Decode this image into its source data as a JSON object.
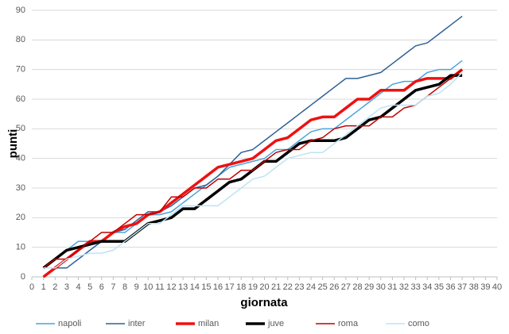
{
  "chart_data": {
    "type": "line",
    "x_label": "giornata",
    "y_label": "punti",
    "x": [
      1,
      2,
      3,
      4,
      5,
      6,
      7,
      8,
      9,
      10,
      11,
      12,
      13,
      14,
      15,
      16,
      17,
      18,
      19,
      20,
      21,
      22,
      23,
      24,
      25,
      26,
      27,
      28,
      29,
      30,
      31,
      32,
      33,
      34,
      35,
      36,
      37
    ],
    "xlim": [
      0,
      40
    ],
    "xticks": [
      0,
      1,
      2,
      3,
      4,
      5,
      6,
      7,
      8,
      9,
      10,
      11,
      12,
      13,
      14,
      15,
      16,
      17,
      18,
      19,
      20,
      21,
      22,
      23,
      24,
      25,
      26,
      27,
      28,
      29,
      30,
      31,
      32,
      33,
      34,
      35,
      36,
      37,
      38,
      39,
      40
    ],
    "ylim": [
      0,
      90
    ],
    "yticks": [
      0,
      10,
      20,
      30,
      40,
      50,
      60,
      70,
      80,
      90
    ],
    "grid": true,
    "legend": "bottom",
    "series": [
      {
        "name": "napoli",
        "color": "#4aa3df",
        "line_width": 1.5,
        "values": [
          3,
          6,
          9,
          12,
          12,
          12,
          15,
          15,
          18,
          21,
          21,
          22,
          25,
          28,
          31,
          34,
          37,
          38,
          39,
          40,
          43,
          43,
          46,
          49,
          50,
          50,
          53,
          56,
          59,
          62,
          65,
          66,
          66,
          69,
          70,
          70,
          73
        ]
      },
      {
        "name": "inter",
        "color": "#2e6096",
        "line_width": 1.5,
        "values": [
          3,
          3,
          3,
          6,
          9,
          12,
          15,
          16,
          19,
          22,
          22,
          24,
          27,
          30,
          31,
          34,
          38,
          42,
          43,
          46,
          49,
          52,
          55,
          58,
          61,
          64,
          67,
          67,
          68,
          69,
          72,
          75,
          78,
          79,
          82,
          85,
          88
        ]
      },
      {
        "name": "milan",
        "color": "#ee1111",
        "line_width": 3.5,
        "values": [
          0,
          3,
          6,
          9,
          12,
          12,
          15,
          17,
          18,
          21,
          22,
          25,
          28,
          31,
          34,
          37,
          38,
          39,
          40,
          43,
          46,
          47,
          50,
          53,
          54,
          54,
          57,
          60,
          60,
          63,
          63,
          63,
          66,
          67,
          67,
          67,
          70
        ]
      },
      {
        "name": "juve",
        "color": "#000000",
        "line_width": 3.5,
        "values": [
          3,
          6,
          9,
          10,
          11,
          12,
          12,
          12,
          15,
          18,
          19,
          20,
          23,
          23,
          26,
          29,
          32,
          33,
          36,
          39,
          39,
          42,
          45,
          46,
          46,
          46,
          47,
          50,
          53,
          54,
          57,
          60,
          63,
          64,
          65,
          68,
          68
        ]
      },
      {
        "name": "roma",
        "color": "#c00000",
        "line_width": 1.5,
        "values": [
          3,
          6,
          6,
          9,
          12,
          15,
          15,
          18,
          21,
          21,
          22,
          27,
          27,
          30,
          30,
          33,
          33,
          36,
          36,
          39,
          42,
          43,
          43,
          46,
          47,
          50,
          51,
          51,
          51,
          54,
          54,
          57,
          58,
          61,
          64,
          67,
          70
        ]
      },
      {
        "name": "como",
        "color": "#bde3f5",
        "line_width": 1.5,
        "values": [
          3,
          3,
          6,
          7,
          8,
          8,
          9,
          12,
          15,
          18,
          18,
          21,
          24,
          24,
          24,
          24,
          27,
          30,
          33,
          34,
          37,
          40,
          41,
          42,
          42,
          45,
          48,
          51,
          54,
          57,
          58,
          58,
          58,
          61,
          62,
          65,
          69
        ]
      }
    ]
  }
}
